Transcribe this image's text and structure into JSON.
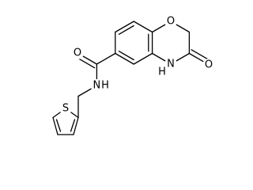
{
  "atoms": {
    "ring_oxygen": "O",
    "ketone_oxygen": "O",
    "ring_nitrogen": "N",
    "ring_nitrogen_h": "H",
    "amide_oxygen": "O",
    "amide_nitrogen": "N",
    "amide_nitrogen_h": "H",
    "sulfur": "S"
  }
}
